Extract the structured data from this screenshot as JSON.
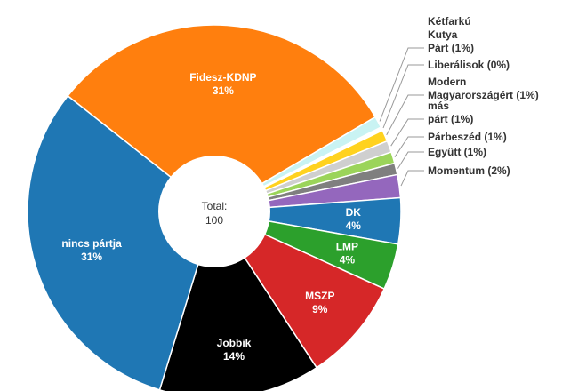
{
  "chart_data": {
    "type": "pie",
    "donut": true,
    "center_label": "Total:",
    "center_value": "100",
    "slices": [
      {
        "label": "Fidesz-KDNP",
        "value": 31,
        "pct_text": "31%",
        "color": "#ff7f0e",
        "label_inside": true
      },
      {
        "label": "Kétfarkú Kutya Párt",
        "value": 1,
        "pct_text": "(1%)",
        "color": "#c9f3f3",
        "label_inside": false
      },
      {
        "label": "Liberálisok",
        "value": 0.3,
        "pct_text": "(0%)",
        "color": "#ffffff",
        "label_inside": false
      },
      {
        "label": "Modern Magyarországért",
        "value": 1,
        "pct_text": "(1%)",
        "color": "#ffd21f",
        "label_inside": false
      },
      {
        "label": "más párt",
        "value": 1,
        "pct_text": "(1%)",
        "color": "#cfcfcf",
        "label_inside": false
      },
      {
        "label": "Párbeszéd",
        "value": 1,
        "pct_text": "(1%)",
        "color": "#9bd45a",
        "label_inside": false
      },
      {
        "label": "Együtt",
        "value": 1,
        "pct_text": "(1%)",
        "color": "#7f7f7f",
        "label_inside": false
      },
      {
        "label": "Momentum",
        "value": 2,
        "pct_text": "(2%)",
        "color": "#9467bd",
        "label_inside": false
      },
      {
        "label": "DK",
        "value": 4,
        "pct_text": "4%",
        "color": "#1f77b4",
        "label_inside": true
      },
      {
        "label": "LMP",
        "value": 4,
        "pct_text": "4%",
        "color": "#2ca02c",
        "label_inside": true
      },
      {
        "label": "MSZP",
        "value": 9,
        "pct_text": "9%",
        "color": "#d62728",
        "label_inside": true
      },
      {
        "label": "Jobbik",
        "value": 14,
        "pct_text": "14%",
        "color": "#000000",
        "label_inside": true
      },
      {
        "label": "nincs pártja",
        "value": 31,
        "pct_text": "31%",
        "color": "#1f77b4",
        "label_inside": true
      }
    ],
    "outside_labels": [
      {
        "slice": 1,
        "lines": [
          "Kétfarkú",
          "Kutya",
          "Párt (1%)"
        ]
      },
      {
        "slice": 2,
        "lines": [
          "Liberálisok (0%)"
        ]
      },
      {
        "slice": 3,
        "lines": [
          "Modern",
          "Magyarországért (1%)"
        ]
      },
      {
        "slice": 4,
        "lines": [
          "más",
          "párt (1%)"
        ]
      },
      {
        "slice": 5,
        "lines": [
          "Párbeszéd (1%)"
        ]
      },
      {
        "slice": 6,
        "lines": [
          "Együtt (1%)"
        ]
      },
      {
        "slice": 7,
        "lines": [
          "Momentum (2%)"
        ]
      }
    ]
  }
}
